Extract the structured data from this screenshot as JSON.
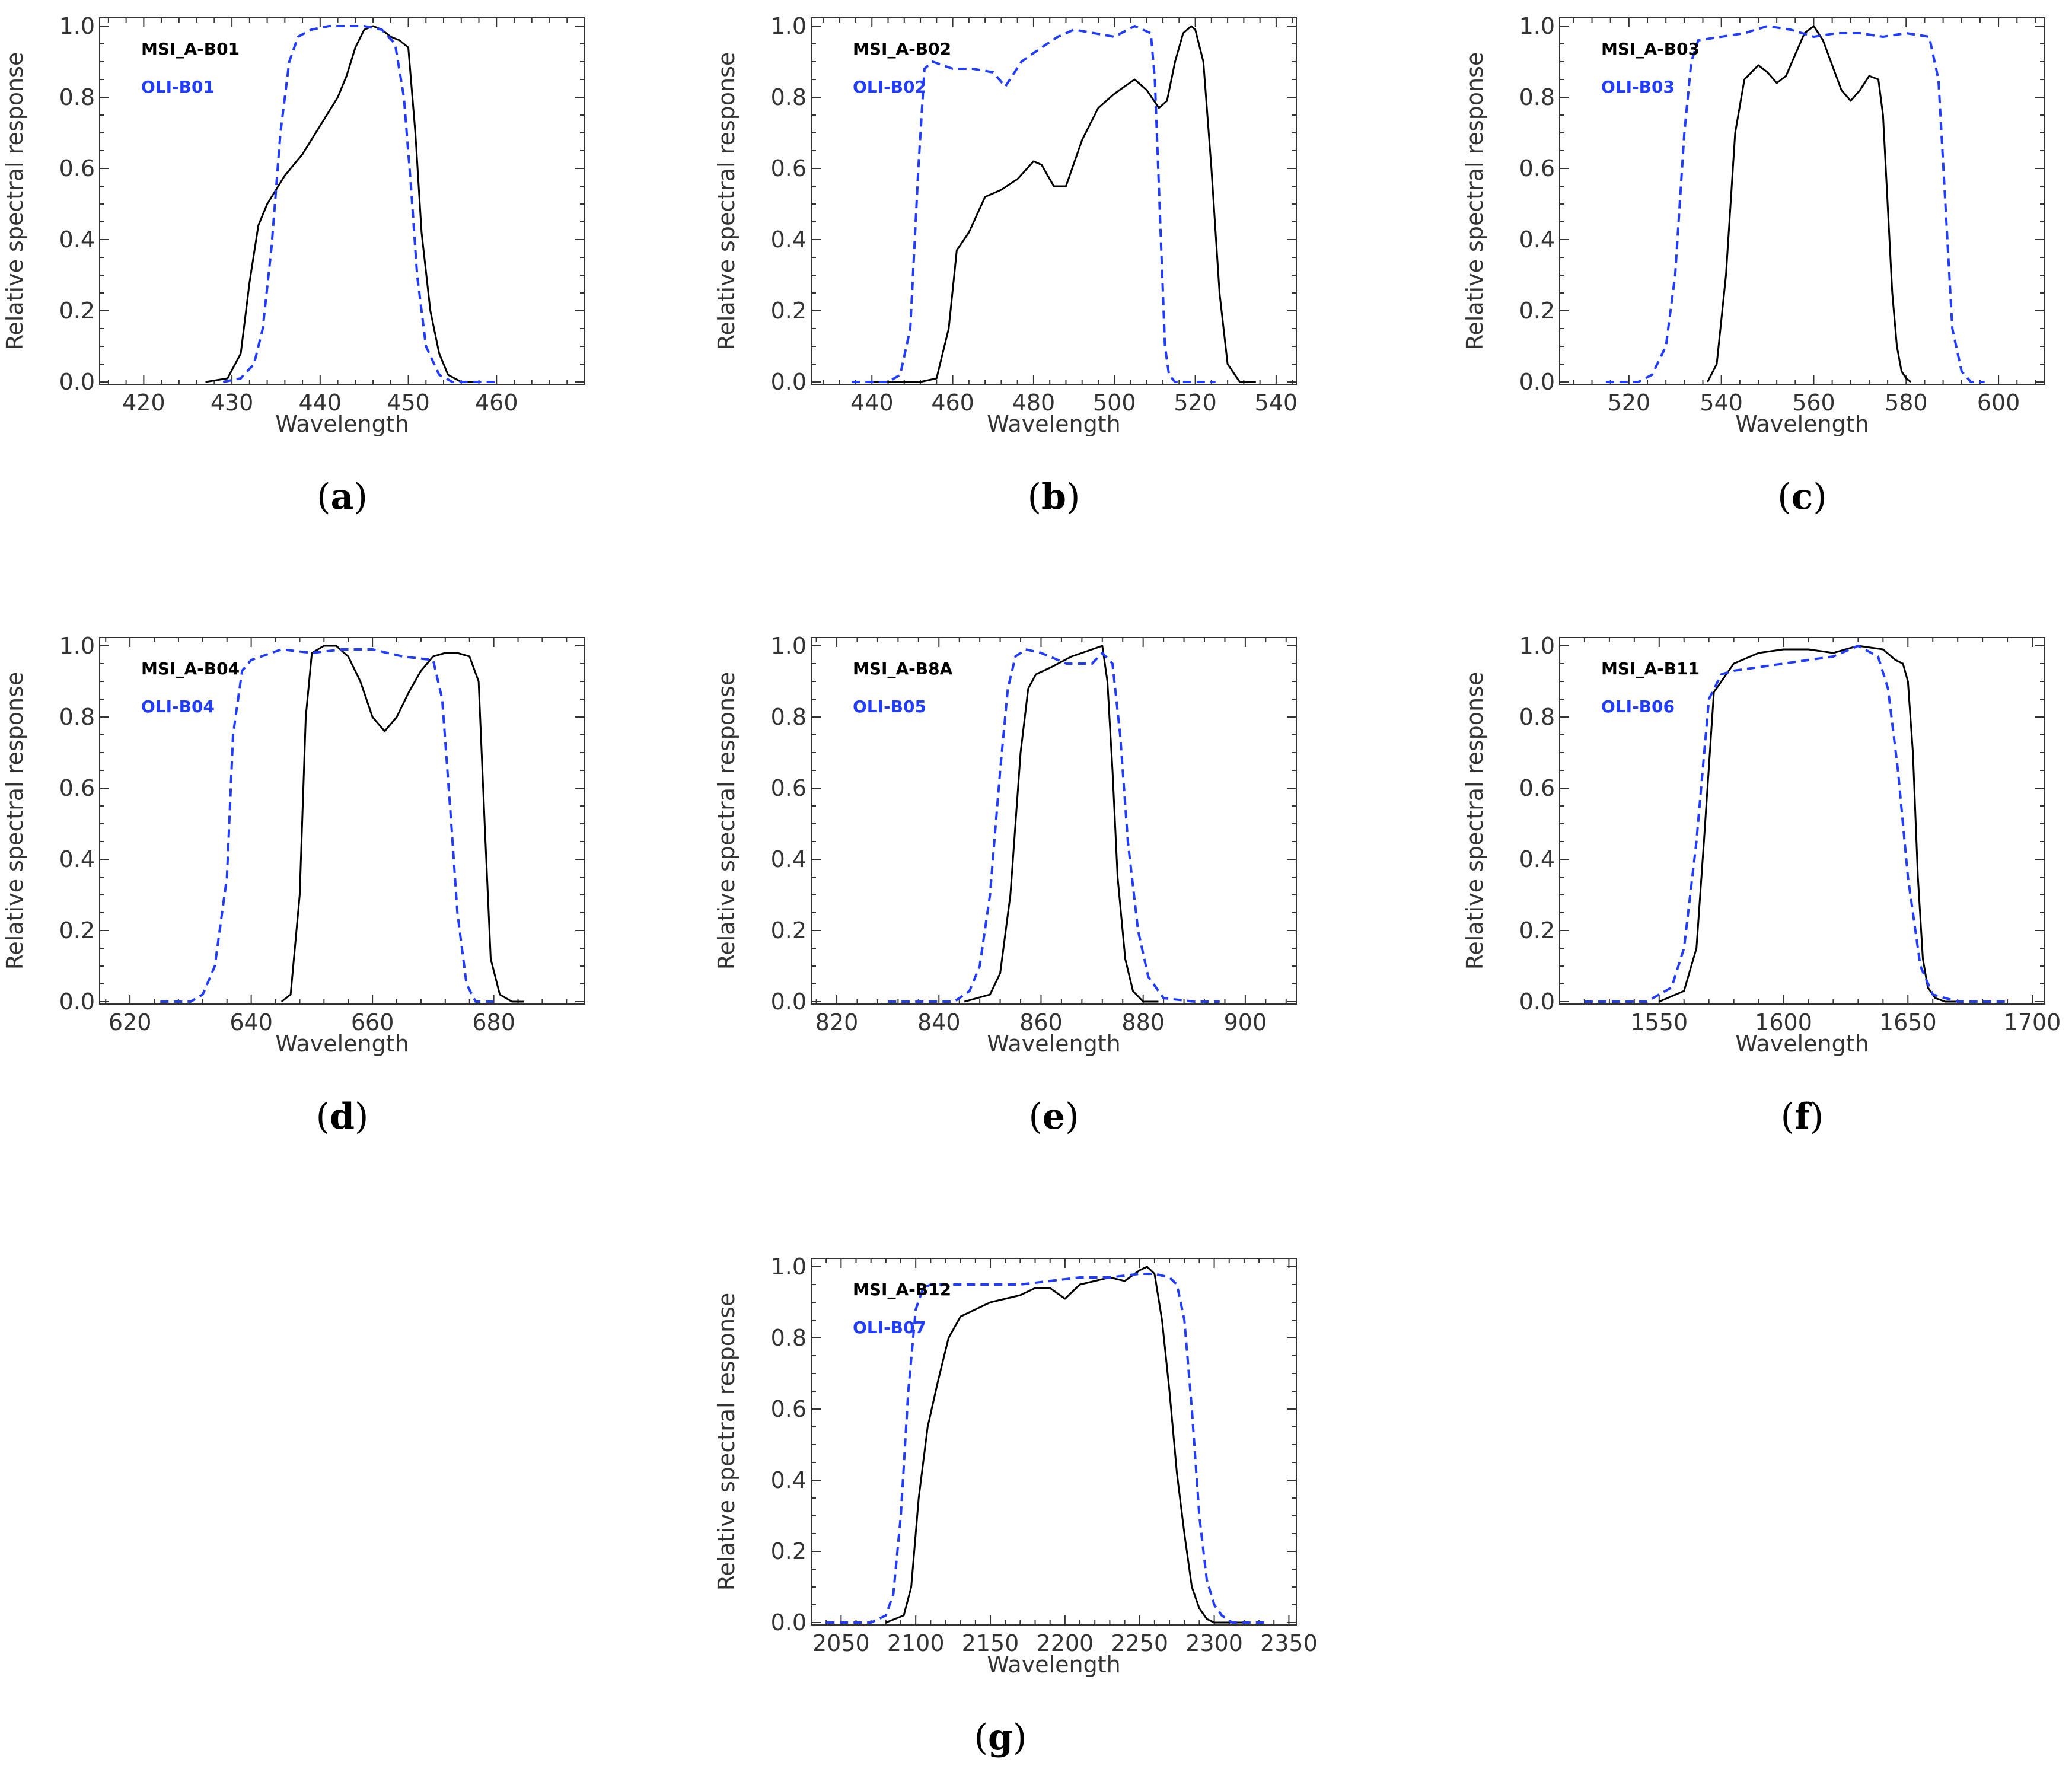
{
  "colors": {
    "msi": "#000000",
    "oli": "#1f3cff",
    "axis": "#333333"
  },
  "chart_data": [
    {
      "id": "a",
      "type": "line",
      "caption": "a",
      "xlabel": "Wavelength",
      "ylabel": "Relative spectral response",
      "xlim": [
        415,
        470
      ],
      "ylim": [
        0,
        1
      ],
      "xticks": [
        420,
        430,
        440,
        450,
        460
      ],
      "yticks": [
        0.0,
        0.2,
        0.4,
        0.6,
        0.8,
        1.0
      ],
      "legend": "top-left",
      "series": [
        {
          "name": "MSI_A-B01",
          "style": "solid",
          "color": "#000000",
          "x": [
            427,
            429.5,
            431,
            432,
            433,
            434,
            436,
            438,
            440,
            442,
            443,
            444,
            445,
            446,
            447,
            448,
            449,
            450,
            450.8,
            451.5,
            452.5,
            453.5,
            454.5,
            456,
            457.5
          ],
          "y": [
            0,
            0.01,
            0.08,
            0.28,
            0.44,
            0.5,
            0.58,
            0.64,
            0.72,
            0.8,
            0.86,
            0.94,
            0.99,
            1.0,
            0.99,
            0.97,
            0.96,
            0.94,
            0.7,
            0.42,
            0.2,
            0.08,
            0.02,
            0.0,
            0.0
          ]
        },
        {
          "name": "OLI-B01",
          "style": "dashed",
          "color": "#1f3cff",
          "x": [
            429,
            431,
            432.5,
            433.5,
            434.5,
            435.5,
            436.5,
            437.5,
            439,
            441,
            443,
            445,
            447,
            448.5,
            449.5,
            450.3,
            451,
            452,
            453.5,
            455,
            457,
            460
          ],
          "y": [
            0,
            0.01,
            0.05,
            0.15,
            0.38,
            0.7,
            0.9,
            0.97,
            0.99,
            1.0,
            1.0,
            1.0,
            0.99,
            0.95,
            0.8,
            0.55,
            0.3,
            0.1,
            0.02,
            0.0,
            0.0,
            0.0
          ]
        }
      ]
    },
    {
      "id": "b",
      "type": "line",
      "caption": "b",
      "xlabel": "Wavelength",
      "ylabel": "Relative spectral response",
      "xlim": [
        425,
        545
      ],
      "ylim": [
        0,
        1
      ],
      "xticks": [
        440,
        460,
        480,
        500,
        520,
        540
      ],
      "yticks": [
        0.0,
        0.2,
        0.4,
        0.6,
        0.8,
        1.0
      ],
      "legend": "top-left",
      "series": [
        {
          "name": "MSI_A-B02",
          "style": "solid",
          "color": "#000000",
          "x": [
            440,
            452,
            456,
            459,
            461,
            464,
            468,
            472,
            476,
            480,
            482,
            485,
            488,
            492,
            496,
            500,
            505,
            508,
            511,
            513,
            515,
            517,
            519,
            520,
            522,
            524,
            526,
            528,
            531,
            535
          ],
          "y": [
            0,
            0.0,
            0.01,
            0.15,
            0.37,
            0.42,
            0.52,
            0.54,
            0.57,
            0.62,
            0.61,
            0.55,
            0.55,
            0.68,
            0.77,
            0.81,
            0.85,
            0.82,
            0.77,
            0.79,
            0.9,
            0.98,
            1.0,
            0.99,
            0.9,
            0.6,
            0.25,
            0.05,
            0.0,
            0.0
          ]
        },
        {
          "name": "OLI-B02",
          "style": "dashed",
          "color": "#1f3cff",
          "x": [
            435,
            444,
            447,
            449.5,
            451.5,
            453,
            455,
            460,
            465,
            470,
            473,
            477,
            482,
            486,
            490,
            495,
            500,
            505,
            509,
            510,
            511.5,
            512.5,
            513.5,
            515,
            518,
            525
          ],
          "y": [
            0,
            0.0,
            0.02,
            0.15,
            0.6,
            0.88,
            0.9,
            0.88,
            0.88,
            0.87,
            0.83,
            0.9,
            0.94,
            0.97,
            0.99,
            0.98,
            0.97,
            1.0,
            0.98,
            0.85,
            0.4,
            0.1,
            0.02,
            0.0,
            0.0,
            0.0
          ]
        }
      ]
    },
    {
      "id": "c",
      "type": "line",
      "caption": "c",
      "xlabel": "Wavelength",
      "ylabel": "Relative spectral response",
      "xlim": [
        505,
        610
      ],
      "ylim": [
        0,
        1
      ],
      "xticks": [
        520,
        540,
        560,
        580,
        600
      ],
      "yticks": [
        0.0,
        0.2,
        0.4,
        0.6,
        0.8,
        1.0
      ],
      "legend": "top-left",
      "series": [
        {
          "name": "MSI_A-B03",
          "style": "solid",
          "color": "#000000",
          "x": [
            537,
            539,
            541,
            543,
            545,
            548,
            550,
            552,
            554,
            556,
            558,
            560,
            562,
            564,
            566,
            568,
            570,
            572,
            574,
            575,
            576,
            577,
            578,
            579,
            580,
            581
          ],
          "y": [
            0,
            0.05,
            0.3,
            0.7,
            0.85,
            0.89,
            0.87,
            0.84,
            0.86,
            0.92,
            0.98,
            1.0,
            0.96,
            0.89,
            0.82,
            0.79,
            0.82,
            0.86,
            0.85,
            0.75,
            0.5,
            0.25,
            0.1,
            0.03,
            0.01,
            0.0
          ]
        },
        {
          "name": "OLI-B03",
          "style": "dashed",
          "color": "#1f3cff",
          "x": [
            515,
            522,
            525,
            528,
            530,
            532,
            533.5,
            535,
            540,
            545,
            550,
            555,
            560,
            565,
            570,
            575,
            580,
            585,
            587,
            588.5,
            590,
            592,
            594,
            597
          ],
          "y": [
            0,
            0.0,
            0.02,
            0.1,
            0.3,
            0.7,
            0.9,
            0.96,
            0.97,
            0.98,
            1.0,
            0.99,
            0.97,
            0.98,
            0.98,
            0.97,
            0.98,
            0.97,
            0.85,
            0.5,
            0.15,
            0.03,
            0.0,
            0.0
          ]
        }
      ]
    },
    {
      "id": "d",
      "type": "line",
      "caption": "d",
      "xlabel": "Wavelength",
      "ylabel": "Relative spectral response",
      "xlim": [
        615,
        695
      ],
      "ylim": [
        0,
        1
      ],
      "xticks": [
        620,
        640,
        660,
        680
      ],
      "yticks": [
        0.0,
        0.2,
        0.4,
        0.6,
        0.8,
        1.0
      ],
      "legend": "top-left",
      "series": [
        {
          "name": "MSI_A-B04",
          "style": "solid",
          "color": "#000000",
          "x": [
            645,
            646.5,
            648,
            649,
            650,
            652,
            654,
            656,
            658,
            660,
            662,
            664,
            666,
            668,
            670,
            672,
            674,
            676,
            677.5,
            678.5,
            679.5,
            681,
            683,
            685
          ],
          "y": [
            0,
            0.02,
            0.3,
            0.8,
            0.98,
            1.0,
            1.0,
            0.97,
            0.9,
            0.8,
            0.76,
            0.8,
            0.87,
            0.93,
            0.97,
            0.98,
            0.98,
            0.97,
            0.9,
            0.5,
            0.12,
            0.02,
            0.0,
            0.0
          ]
        },
        {
          "name": "OLI-B04",
          "style": "dashed",
          "color": "#1f3cff",
          "x": [
            625,
            630,
            632,
            634,
            636,
            637,
            638.5,
            640,
            645,
            650,
            655,
            660,
            665,
            670,
            671.5,
            673,
            674,
            675.5,
            677,
            680
          ],
          "y": [
            0,
            0.0,
            0.02,
            0.1,
            0.35,
            0.75,
            0.93,
            0.96,
            0.99,
            0.98,
            0.99,
            0.99,
            0.97,
            0.96,
            0.85,
            0.5,
            0.25,
            0.05,
            0.0,
            0.0
          ]
        }
      ]
    },
    {
      "id": "e",
      "type": "line",
      "caption": "e",
      "xlabel": "Wavelength",
      "ylabel": "Relative spectral response",
      "xlim": [
        815,
        910
      ],
      "ylim": [
        0,
        1
      ],
      "xticks": [
        820,
        840,
        860,
        880,
        900
      ],
      "yticks": [
        0.0,
        0.2,
        0.4,
        0.6,
        0.8,
        1.0
      ],
      "legend": "top-left",
      "series": [
        {
          "name": "MSI_A-B8A",
          "style": "solid",
          "color": "#000000",
          "x": [
            845,
            850,
            852,
            854,
            856,
            857.5,
            859,
            862,
            866,
            870,
            872,
            873,
            874,
            875,
            876.5,
            878,
            880,
            883
          ],
          "y": [
            0,
            0.02,
            0.08,
            0.3,
            0.7,
            0.88,
            0.92,
            0.94,
            0.97,
            0.99,
            1.0,
            0.9,
            0.65,
            0.35,
            0.12,
            0.03,
            0.0,
            0.0
          ]
        },
        {
          "name": "OLI-B05",
          "style": "dashed",
          "color": "#1f3cff",
          "x": [
            830,
            843,
            846,
            848,
            850,
            852,
            853.5,
            855,
            857,
            860,
            865,
            870,
            872,
            874,
            875.5,
            877,
            879,
            881,
            884,
            890,
            895
          ],
          "y": [
            0,
            0.0,
            0.03,
            0.1,
            0.3,
            0.65,
            0.88,
            0.97,
            0.99,
            0.98,
            0.95,
            0.95,
            0.98,
            0.95,
            0.75,
            0.45,
            0.2,
            0.07,
            0.01,
            0.0,
            0.0
          ]
        }
      ]
    },
    {
      "id": "f",
      "type": "line",
      "caption": "f",
      "xlabel": "Wavelength",
      "ylabel": "Relative spectral response",
      "xlim": [
        1510,
        1705
      ],
      "ylim": [
        0,
        1
      ],
      "xticks": [
        1550,
        1600,
        1650,
        1700
      ],
      "yticks": [
        0.0,
        0.2,
        0.4,
        0.6,
        0.8,
        1.0
      ],
      "legend": "top-left",
      "series": [
        {
          "name": "MSI_A-B11",
          "style": "solid",
          "color": "#000000",
          "x": [
            1550,
            1560,
            1565,
            1568,
            1572,
            1575,
            1580,
            1590,
            1600,
            1610,
            1620,
            1630,
            1640,
            1645,
            1648,
            1650,
            1652,
            1654,
            1656,
            1658,
            1661,
            1665,
            1670
          ],
          "y": [
            0,
            0.03,
            0.15,
            0.45,
            0.87,
            0.9,
            0.95,
            0.98,
            0.99,
            0.99,
            0.98,
            1.0,
            0.99,
            0.96,
            0.95,
            0.9,
            0.7,
            0.35,
            0.12,
            0.04,
            0.01,
            0.0,
            0.0
          ]
        },
        {
          "name": "OLI-B06",
          "style": "dashed",
          "color": "#1f3cff",
          "x": [
            1520,
            1545,
            1555,
            1560,
            1565,
            1570,
            1575,
            1580,
            1590,
            1600,
            1610,
            1620,
            1630,
            1638,
            1642,
            1646,
            1650,
            1655,
            1660,
            1670,
            1680,
            1690
          ],
          "y": [
            0,
            0.0,
            0.04,
            0.15,
            0.45,
            0.85,
            0.92,
            0.93,
            0.94,
            0.95,
            0.96,
            0.97,
            1.0,
            0.97,
            0.88,
            0.65,
            0.35,
            0.1,
            0.02,
            0.0,
            0.0,
            0.0
          ]
        }
      ]
    },
    {
      "id": "g",
      "type": "line",
      "caption": "g",
      "xlabel": "Wavelength",
      "ylabel": "Relative spectral response",
      "xlim": [
        2030,
        2355
      ],
      "ylim": [
        0,
        1
      ],
      "xticks": [
        2050,
        2100,
        2150,
        2200,
        2250,
        2300,
        2350
      ],
      "yticks": [
        0.0,
        0.2,
        0.4,
        0.6,
        0.8,
        1.0
      ],
      "legend": "top-left",
      "series": [
        {
          "name": "MSI_A-B12",
          "style": "solid",
          "color": "#000000",
          "x": [
            2080,
            2092,
            2097,
            2102,
            2108,
            2115,
            2122,
            2130,
            2140,
            2150,
            2160,
            2170,
            2180,
            2190,
            2200,
            2205,
            2210,
            2220,
            2230,
            2240,
            2250,
            2255,
            2260,
            2265,
            2270,
            2275,
            2280,
            2285,
            2290,
            2295,
            2300,
            2310,
            2320
          ],
          "y": [
            0,
            0.02,
            0.1,
            0.35,
            0.55,
            0.68,
            0.8,
            0.86,
            0.88,
            0.9,
            0.91,
            0.92,
            0.94,
            0.94,
            0.91,
            0.93,
            0.95,
            0.96,
            0.97,
            0.96,
            0.99,
            1.0,
            0.98,
            0.85,
            0.65,
            0.42,
            0.25,
            0.1,
            0.04,
            0.01,
            0.0,
            0.0,
            0.0
          ]
        },
        {
          "name": "OLI-B07",
          "style": "dashed",
          "color": "#1f3cff",
          "x": [
            2040,
            2070,
            2080,
            2085,
            2090,
            2095,
            2100,
            2105,
            2110,
            2115,
            2120,
            2130,
            2150,
            2170,
            2190,
            2210,
            2230,
            2250,
            2260,
            2270,
            2275,
            2280,
            2285,
            2290,
            2295,
            2300,
            2305,
            2312,
            2320,
            2335
          ],
          "y": [
            0,
            0.0,
            0.02,
            0.08,
            0.3,
            0.65,
            0.88,
            0.94,
            0.95,
            0.95,
            0.95,
            0.95,
            0.95,
            0.95,
            0.96,
            0.97,
            0.97,
            0.98,
            0.98,
            0.97,
            0.95,
            0.85,
            0.6,
            0.3,
            0.12,
            0.05,
            0.02,
            0.0,
            0.0,
            0.0
          ]
        }
      ]
    }
  ]
}
